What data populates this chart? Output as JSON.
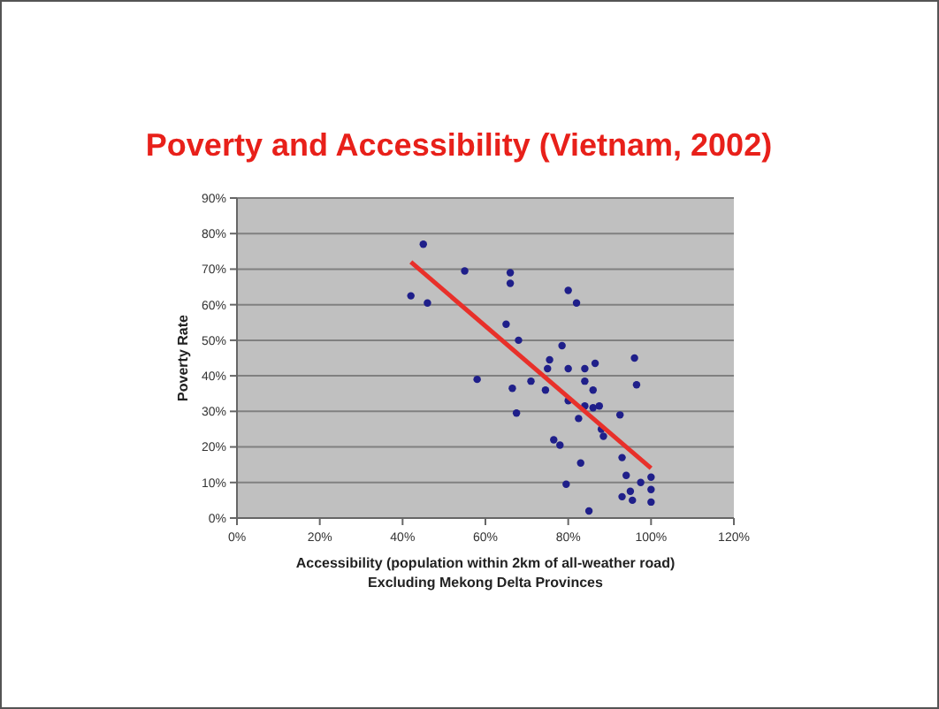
{
  "chart_data": {
    "type": "scatter",
    "title": "Poverty and Accessibility (Vietnam, 2002)",
    "xlabel": "Accessibility (population within 2km of all-weather road)\nExcluding Mekong Delta Provinces",
    "ylabel": "Poverty Rate",
    "xlim": [
      0,
      1.2
    ],
    "xticks": [
      {
        "value": 0,
        "label": "0%"
      },
      {
        "value": 0.2,
        "label": "20%"
      },
      {
        "value": 0.4,
        "label": "40%"
      },
      {
        "value": 0.6,
        "label": "60%"
      },
      {
        "value": 0.8,
        "label": "80%"
      },
      {
        "value": 1,
        "label": "100%"
      },
      {
        "value": 1.2,
        "label": "120%"
      }
    ],
    "ylim": [
      0,
      0.9
    ],
    "yticks": [
      {
        "value": 0,
        "label": "0%"
      },
      {
        "value": 0.1,
        "label": "10%"
      },
      {
        "value": 0.2,
        "label": "20%"
      },
      {
        "value": 0.3,
        "label": "30%"
      },
      {
        "value": 0.4,
        "label": "40%"
      },
      {
        "value": 0.5,
        "label": "50%"
      },
      {
        "value": 0.6,
        "label": "60%"
      },
      {
        "value": 0.7,
        "label": "70%"
      },
      {
        "value": 0.8,
        "label": "80%"
      },
      {
        "value": 0.9,
        "label": "90%"
      }
    ],
    "grid": "y",
    "series": [
      {
        "color": "#1f1f8a",
        "marker": "circle",
        "x": [
          0.45,
          0.42,
          0.46,
          0.55,
          0.66,
          0.66,
          0.8,
          0.82,
          0.65,
          0.68,
          0.785,
          0.755,
          0.96,
          0.865,
          0.75,
          0.8,
          0.84,
          0.58,
          0.71,
          0.84,
          0.965,
          0.665,
          0.745,
          0.86,
          0.8,
          0.84,
          0.86,
          0.875,
          0.675,
          0.925,
          0.825,
          0.88,
          0.885,
          0.765,
          0.78,
          0.93,
          0.83,
          0.94,
          0.795,
          0.975,
          1.0,
          1.0,
          0.95,
          0.93,
          0.955,
          1.0,
          0.85
        ],
        "values": [
          0.77,
          0.625,
          0.605,
          0.695,
          0.69,
          0.66,
          0.64,
          0.605,
          0.545,
          0.5,
          0.485,
          0.445,
          0.45,
          0.435,
          0.42,
          0.42,
          0.42,
          0.39,
          0.385,
          0.385,
          0.375,
          0.365,
          0.36,
          0.36,
          0.33,
          0.315,
          0.31,
          0.315,
          0.295,
          0.29,
          0.28,
          0.25,
          0.23,
          0.22,
          0.205,
          0.17,
          0.155,
          0.12,
          0.095,
          0.1,
          0.115,
          0.08,
          0.075,
          0.06,
          0.05,
          0.045,
          0.02
        ]
      },
      {
        "type": "line",
        "color": "#e8302a",
        "x": [
          0.42,
          1.0
        ],
        "values": [
          0.72,
          0.14
        ],
        "marker": "none",
        "line_style": "solid"
      }
    ]
  }
}
